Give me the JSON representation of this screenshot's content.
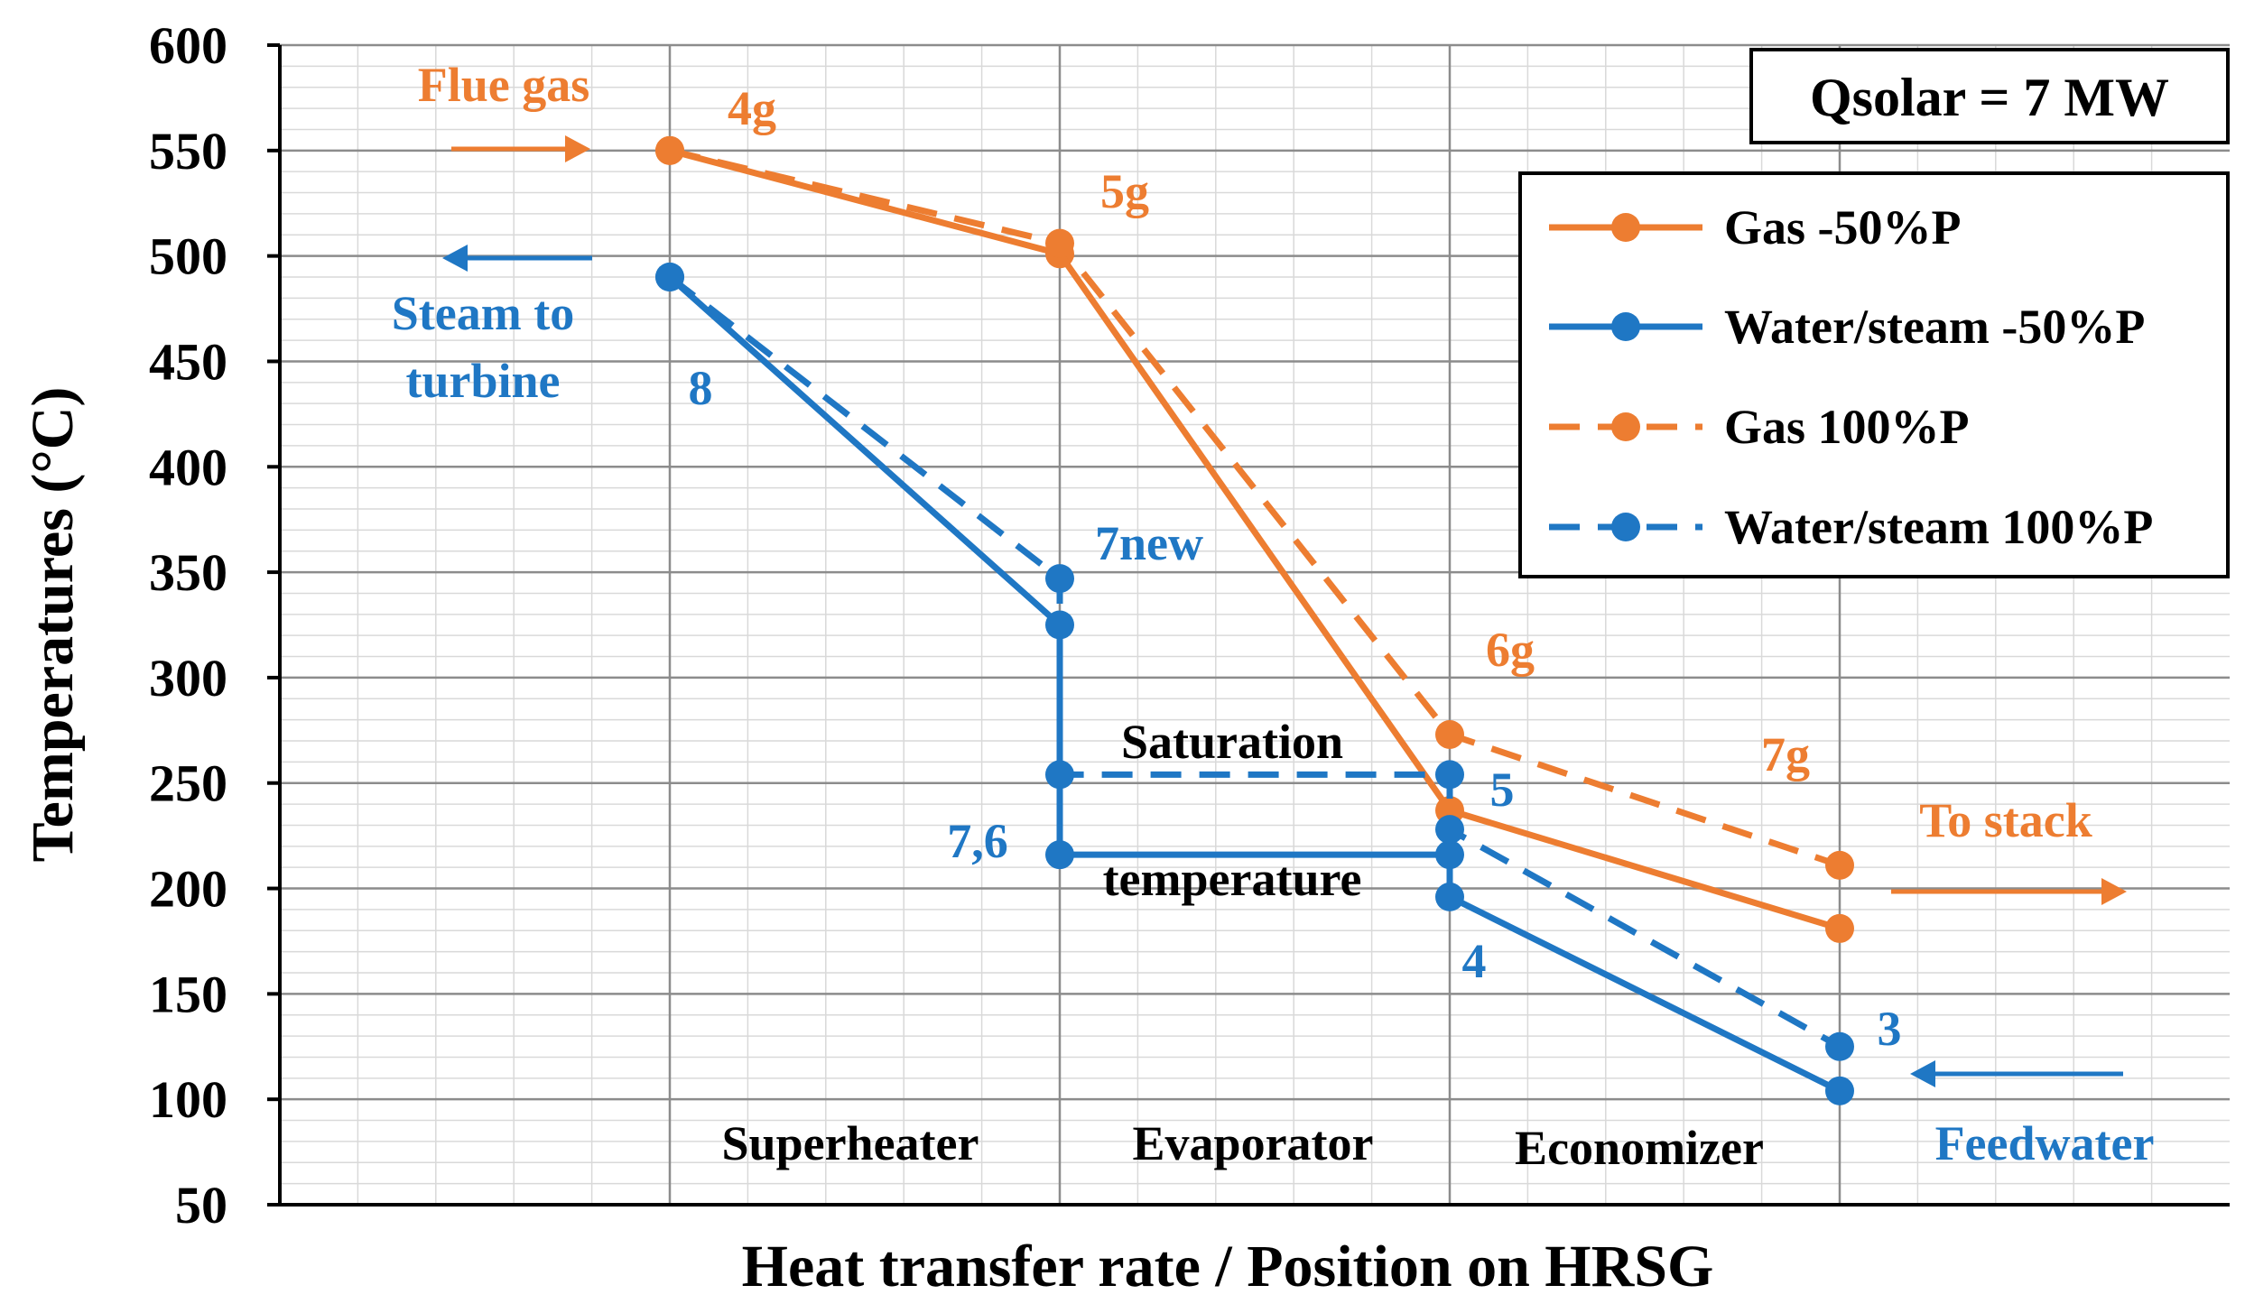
{
  "chart_data": {
    "type": "line",
    "xlabel": "Heat transfer rate / Position on HRSG",
    "ylabel": "Temperatures (°C)",
    "ylim": [
      50,
      600
    ],
    "yticks": [
      50,
      100,
      150,
      200,
      250,
      300,
      350,
      400,
      450,
      500,
      550,
      600
    ],
    "xlim": [
      0,
      5
    ],
    "positions": [
      1,
      2,
      3,
      4
    ],
    "grid": true,
    "legend_position": "top-right",
    "box_label": "Qsolar = 7 MW",
    "series": [
      {
        "name": "Gas -50%P",
        "color": "#ED7D31",
        "dashed": false,
        "points": [
          [
            1,
            550
          ],
          [
            2,
            501
          ],
          [
            3,
            237
          ],
          [
            4,
            181
          ]
        ]
      },
      {
        "name": "Water/steam -50%P",
        "color": "#1F77C4",
        "dashed": false,
        "points": [
          [
            1,
            490
          ],
          [
            2,
            325
          ],
          [
            2,
            216
          ],
          [
            3,
            216
          ],
          [
            3,
            196
          ],
          [
            4,
            104
          ]
        ]
      },
      {
        "name": "Gas 100%P",
        "color": "#ED7D31",
        "dashed": true,
        "points": [
          [
            1,
            550
          ],
          [
            2,
            506
          ],
          [
            3,
            273
          ],
          [
            4,
            211
          ]
        ]
      },
      {
        "name": "Water/steam 100%P",
        "color": "#1F77C4",
        "dashed": true,
        "points": [
          [
            1,
            490
          ],
          [
            2,
            347
          ],
          [
            2,
            254
          ],
          [
            3,
            254
          ],
          [
            3,
            228
          ],
          [
            4,
            125
          ]
        ]
      }
    ],
    "annotations": {
      "flue_gas": "Flue gas",
      "steam_to": "Steam to",
      "turbine": "turbine",
      "to_stack": "To stack",
      "feedwater": "Feedwater",
      "saturation": "Saturation",
      "temperature": "temperature",
      "p_4g": "4g",
      "p_5g": "5g",
      "p_6g": "6g",
      "p_7g": "7g",
      "p_8": "8",
      "p_7new": "7new",
      "p_76": "7,6",
      "p_5": "5",
      "p_4": "4",
      "p_3": "3",
      "sections": [
        "Superheater",
        "Evaporator",
        "Economizer"
      ]
    }
  }
}
